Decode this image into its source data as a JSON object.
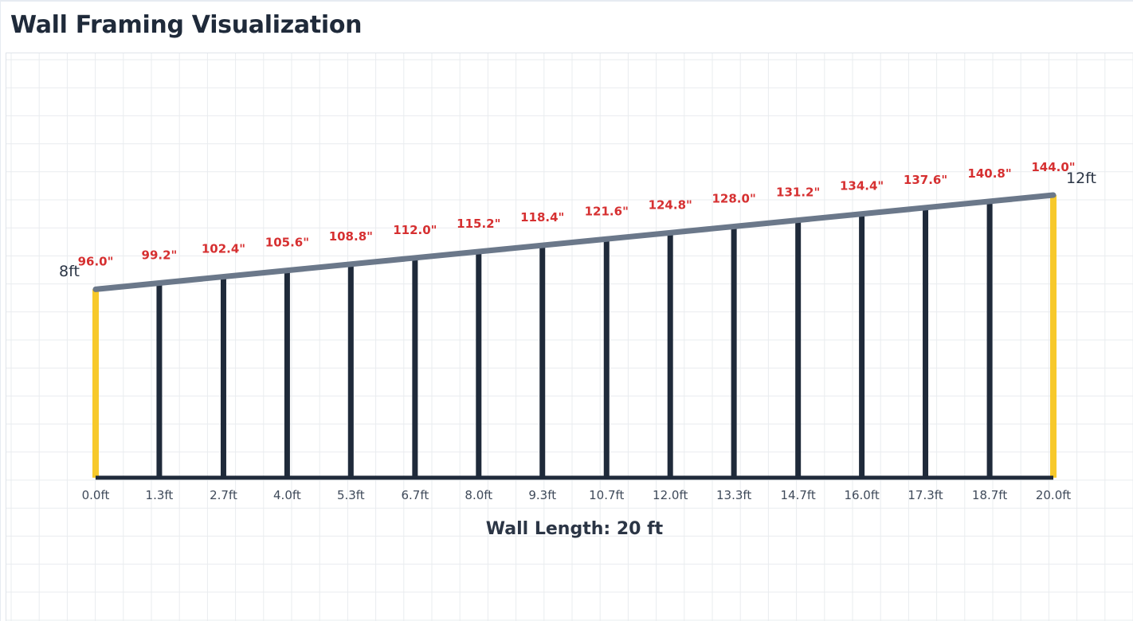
{
  "page": {
    "title": "Wall Framing Visualization"
  },
  "wall": {
    "length_label": "Wall Length: 20 ft",
    "start_height_label": "8ft",
    "end_height_label": "12ft",
    "length_ft": 20,
    "start_height_in": 96,
    "end_height_in": 144
  },
  "colors": {
    "end_stud": "#f7c92b",
    "stud": "#1f2a3a",
    "top_plate": "#6b788a",
    "bottom_plate": "#1f2a3a",
    "height_label": "#d63031",
    "grid": "#e9ecef"
  },
  "studs": [
    {
      "position_label": "0.0ft",
      "height_label": "96.0\"",
      "position_ft": 0.0,
      "height_in": 96.0,
      "end_stud": true
    },
    {
      "position_label": "1.3ft",
      "height_label": "99.2\"",
      "position_ft": 1.33,
      "height_in": 99.2,
      "end_stud": false
    },
    {
      "position_label": "2.7ft",
      "height_label": "102.4\"",
      "position_ft": 2.67,
      "height_in": 102.4,
      "end_stud": false
    },
    {
      "position_label": "4.0ft",
      "height_label": "105.6\"",
      "position_ft": 4.0,
      "height_in": 105.6,
      "end_stud": false
    },
    {
      "position_label": "5.3ft",
      "height_label": "108.8\"",
      "position_ft": 5.33,
      "height_in": 108.8,
      "end_stud": false
    },
    {
      "position_label": "6.7ft",
      "height_label": "112.0\"",
      "position_ft": 6.67,
      "height_in": 112.0,
      "end_stud": false
    },
    {
      "position_label": "8.0ft",
      "height_label": "115.2\"",
      "position_ft": 8.0,
      "height_in": 115.2,
      "end_stud": false
    },
    {
      "position_label": "9.3ft",
      "height_label": "118.4\"",
      "position_ft": 9.33,
      "height_in": 118.4,
      "end_stud": false
    },
    {
      "position_label": "10.7ft",
      "height_label": "121.6\"",
      "position_ft": 10.67,
      "height_in": 121.6,
      "end_stud": false
    },
    {
      "position_label": "12.0ft",
      "height_label": "124.8\"",
      "position_ft": 12.0,
      "height_in": 124.8,
      "end_stud": false
    },
    {
      "position_label": "13.3ft",
      "height_label": "128.0\"",
      "position_ft": 13.33,
      "height_in": 128.0,
      "end_stud": false
    },
    {
      "position_label": "14.7ft",
      "height_label": "131.2\"",
      "position_ft": 14.67,
      "height_in": 131.2,
      "end_stud": false
    },
    {
      "position_label": "16.0ft",
      "height_label": "134.4\"",
      "position_ft": 16.0,
      "height_in": 134.4,
      "end_stud": false
    },
    {
      "position_label": "17.3ft",
      "height_label": "137.6\"",
      "position_ft": 17.33,
      "height_in": 137.6,
      "end_stud": false
    },
    {
      "position_label": "18.7ft",
      "height_label": "140.8\"",
      "position_ft": 18.67,
      "height_in": 140.8,
      "end_stud": false
    },
    {
      "position_label": "20.0ft",
      "height_label": "144.0\"",
      "position_ft": 20.0,
      "height_in": 144.0,
      "end_stud": true
    }
  ]
}
